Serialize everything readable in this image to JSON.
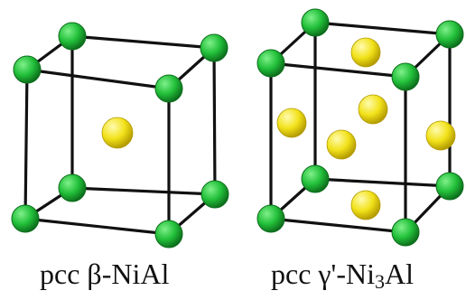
{
  "structures": [
    {
      "name": "beta-NiAl",
      "caption": {
        "prefix": "pcc",
        "label": "β-NiAl"
      },
      "atoms": {
        "corner": "Ni",
        "center": "Al"
      }
    },
    {
      "name": "gamma-prime-Ni3Al",
      "caption": {
        "prefix": "pcc",
        "label_start": "γ'-Ni",
        "subscript": "3",
        "label_end": "Al"
      },
      "atoms": {
        "corner": "Ni",
        "face": "Al"
      }
    }
  ],
  "colors": {
    "corner_atom": "#22c03a",
    "corner_atom_highlight": "#7ff08a",
    "corner_atom_shadow": "#0d6e1c",
    "inner_atom": "#f2e21a",
    "inner_atom_highlight": "#fffbb0",
    "inner_atom_shadow": "#b29a00",
    "edge": "#111111",
    "background": "#ffffff"
  }
}
